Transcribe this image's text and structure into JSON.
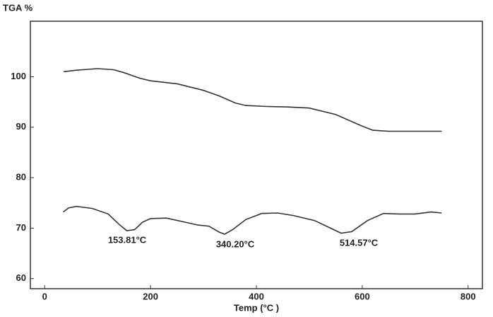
{
  "chart_data": {
    "type": "line",
    "ylabel": "TGA %",
    "xlabel": "Temp (°C )",
    "xlim": [
      -27,
      827
    ],
    "xticks": [
      0,
      200,
      400,
      600,
      800
    ],
    "ylim": [
      58,
      111
    ],
    "yticks": [
      60,
      70,
      80,
      90,
      100
    ],
    "grid": false,
    "series": [
      {
        "color": "#333333",
        "x": [
          36,
          60,
          100,
          130,
          150,
          180,
          200,
          250,
          300,
          330,
          360,
          380,
          420,
          460,
          500,
          550,
          600,
          620,
          650,
          700,
          750
        ],
        "values": [
          101.0,
          101.3,
          101.6,
          101.4,
          100.8,
          99.7,
          99.2,
          98.6,
          97.3,
          96.2,
          94.8,
          94.3,
          94.1,
          94.0,
          93.8,
          92.5,
          90.2,
          89.4,
          89.2,
          89.2,
          89.2
        ]
      },
      {
        "color": "#333333",
        "x": [
          35,
          45,
          60,
          90,
          120,
          140,
          155,
          170,
          185,
          200,
          230,
          260,
          290,
          310,
          330,
          340,
          355,
          380,
          410,
          440,
          470,
          510,
          540,
          560,
          580,
          610,
          640,
          670,
          700,
          730,
          750
        ],
        "values": [
          73.2,
          74.0,
          74.3,
          73.9,
          72.8,
          70.8,
          69.5,
          69.7,
          71.2,
          71.9,
          72.0,
          71.3,
          70.6,
          70.4,
          69.2,
          68.8,
          69.7,
          71.7,
          72.9,
          73.0,
          72.5,
          71.5,
          70.0,
          69.0,
          69.3,
          71.5,
          72.9,
          72.8,
          72.8,
          73.2,
          73.0
        ]
      }
    ],
    "annotations": [
      "153.81°C",
      "340.20°C",
      "514.57°C"
    ]
  }
}
